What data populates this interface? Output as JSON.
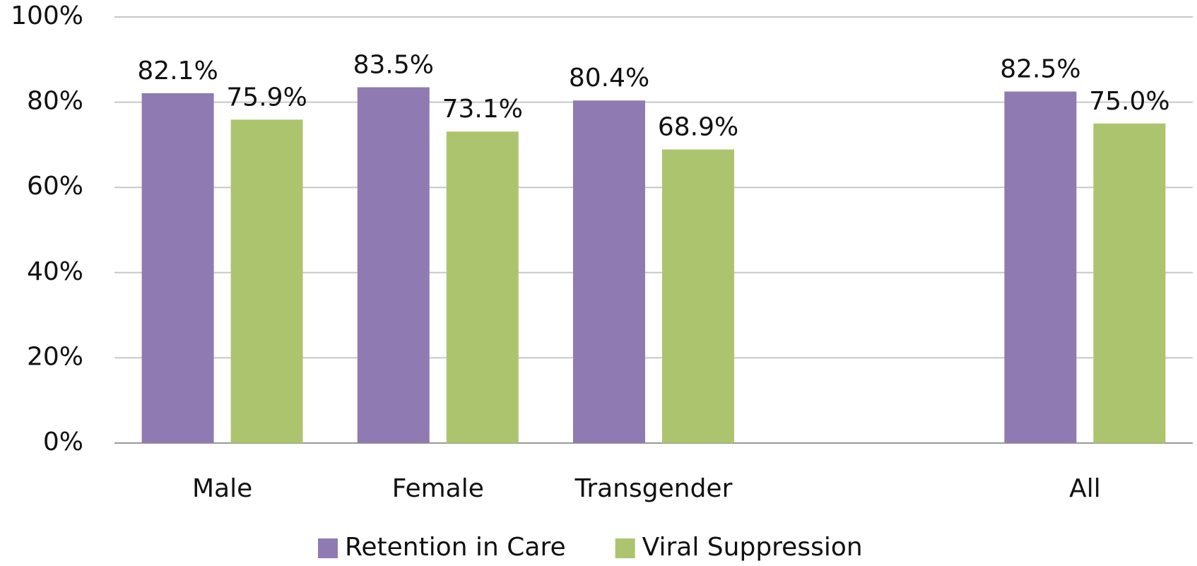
{
  "chart_data": {
    "type": "bar",
    "categories": [
      "Male",
      "Female",
      "Transgender",
      null,
      "All"
    ],
    "series": [
      {
        "name": "Retention in Care",
        "color": "#8f7bb1",
        "values": [
          82.1,
          83.5,
          80.4,
          null,
          82.5
        ],
        "value_labels": [
          "82.1%",
          "83.5%",
          "80.4%",
          null,
          "82.5%"
        ]
      },
      {
        "name": "Viral Suppression",
        "color": "#adc46e",
        "values": [
          75.9,
          73.1,
          68.9,
          null,
          75.0
        ],
        "value_labels": [
          "75.9%",
          "73.1%",
          "68.9%",
          null,
          "75.0%"
        ]
      }
    ],
    "ylim": [
      0,
      100
    ],
    "yticks": [
      {
        "value": 0,
        "label": "0%"
      },
      {
        "value": 20,
        "label": "20%"
      },
      {
        "value": 40,
        "label": "40%"
      },
      {
        "value": 60,
        "label": "60%"
      },
      {
        "value": 80,
        "label": "80%"
      },
      {
        "value": 100,
        "label": "100%"
      }
    ],
    "grid": true,
    "legend": "bottom"
  }
}
